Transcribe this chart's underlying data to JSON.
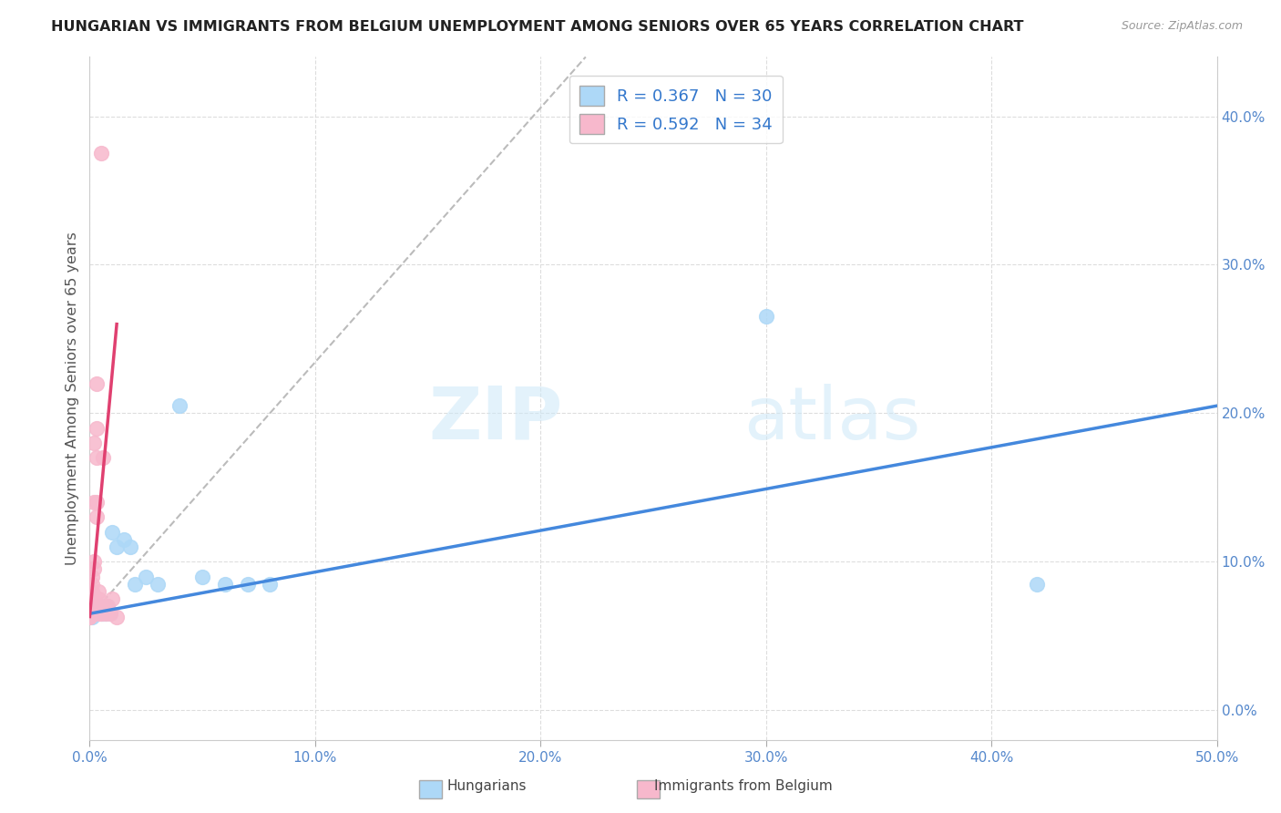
{
  "title": "HUNGARIAN VS IMMIGRANTS FROM BELGIUM UNEMPLOYMENT AMONG SENIORS OVER 65 YEARS CORRELATION CHART",
  "source": "Source: ZipAtlas.com",
  "ylabel": "Unemployment Among Seniors over 65 years",
  "xlim": [
    0.0,
    0.5
  ],
  "ylim": [
    -0.02,
    0.44
  ],
  "x_ticks": [
    0.0,
    0.1,
    0.2,
    0.3,
    0.4,
    0.5
  ],
  "x_tick_labels": [
    "0.0%",
    "10.0%",
    "20.0%",
    "30.0%",
    "40.0%",
    "50.0%"
  ],
  "y_ticks": [
    0.0,
    0.1,
    0.2,
    0.3,
    0.4
  ],
  "y_tick_labels": [
    "0.0%",
    "10.0%",
    "20.0%",
    "30.0%",
    "40.0%"
  ],
  "hungarian_color": "#add8f7",
  "belgian_color": "#f7b8cc",
  "trend_blue": "#4488dd",
  "trend_pink": "#e04070",
  "trend_dash_color": "#bbbbbb",
  "R_hungarian": 0.367,
  "N_hungarian": 30,
  "R_belgian": 0.592,
  "N_belgian": 34,
  "hungarian_x": [
    0.0,
    0.0,
    0.001,
    0.001,
    0.002,
    0.002,
    0.003,
    0.003,
    0.004,
    0.004,
    0.005,
    0.005,
    0.006,
    0.007,
    0.008,
    0.009,
    0.01,
    0.012,
    0.015,
    0.018,
    0.02,
    0.025,
    0.03,
    0.04,
    0.05,
    0.06,
    0.07,
    0.08,
    0.3,
    0.42
  ],
  "hungarian_y": [
    0.065,
    0.07,
    0.063,
    0.068,
    0.065,
    0.07,
    0.065,
    0.07,
    0.065,
    0.07,
    0.065,
    0.07,
    0.065,
    0.065,
    0.07,
    0.065,
    0.12,
    0.11,
    0.115,
    0.11,
    0.085,
    0.09,
    0.085,
    0.205,
    0.09,
    0.085,
    0.085,
    0.085,
    0.265,
    0.085
  ],
  "belgian_x": [
    0.0,
    0.0,
    0.0,
    0.0,
    0.0,
    0.0,
    0.0,
    0.001,
    0.001,
    0.001,
    0.001,
    0.001,
    0.002,
    0.002,
    0.002,
    0.002,
    0.003,
    0.003,
    0.003,
    0.003,
    0.003,
    0.004,
    0.004,
    0.004,
    0.004,
    0.005,
    0.005,
    0.005,
    0.006,
    0.007,
    0.008,
    0.009,
    0.01,
    0.012
  ],
  "belgian_y": [
    0.063,
    0.065,
    0.067,
    0.07,
    0.072,
    0.075,
    0.063,
    0.07,
    0.075,
    0.08,
    0.085,
    0.09,
    0.095,
    0.1,
    0.14,
    0.18,
    0.19,
    0.22,
    0.17,
    0.13,
    0.14,
    0.065,
    0.07,
    0.075,
    0.08,
    0.065,
    0.07,
    0.375,
    0.17,
    0.065,
    0.07,
    0.065,
    0.075,
    0.063
  ],
  "trend_blue_x0": 0.0,
  "trend_blue_y0": 0.065,
  "trend_blue_x1": 0.5,
  "trend_blue_y1": 0.205,
  "trend_pink_x0": 0.0,
  "trend_pink_y0": 0.063,
  "trend_pink_x1": 0.012,
  "trend_pink_y1": 0.26,
  "trend_dash_x0": 0.0,
  "trend_dash_y0": 0.063,
  "trend_dash_x1": 0.22,
  "trend_dash_y1": 0.44
}
